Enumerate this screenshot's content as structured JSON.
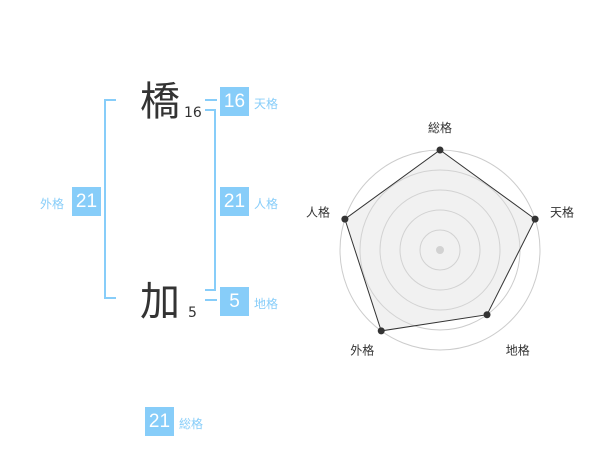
{
  "name": {
    "chars": [
      {
        "char": "橋",
        "strokes": "16"
      },
      {
        "char": "加",
        "strokes": "5"
      }
    ]
  },
  "fortunes": {
    "tenkaku": {
      "label": "天格",
      "value": "16"
    },
    "jinkaku": {
      "label": "人格",
      "value": "21"
    },
    "chikaku": {
      "label": "地格",
      "value": "5"
    },
    "gaikaku": {
      "label": "外格",
      "value": "21"
    },
    "soukaku": {
      "label": "総格",
      "value": "21"
    }
  },
  "colors": {
    "accent": "#87cdf9",
    "text": "#333333"
  },
  "chart_data": {
    "type": "radar",
    "axes": [
      "総格",
      "天格",
      "地格",
      "外格",
      "人格"
    ],
    "values": [
      5,
      5,
      4,
      5,
      5
    ],
    "rlim": [
      0,
      5
    ],
    "grid": true
  }
}
